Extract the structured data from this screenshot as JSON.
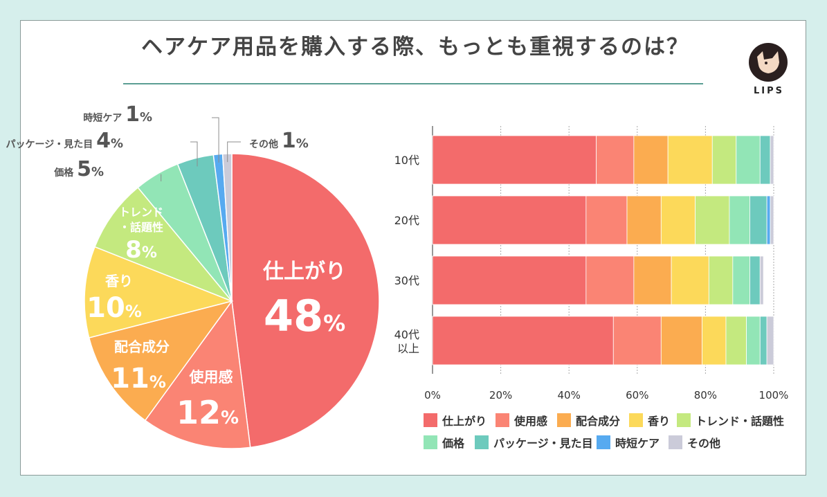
{
  "title": "ヘアケア用品を購入する際、もっとも重視するのは？",
  "brand": {
    "name": "LIPS"
  },
  "chart_data": [
    {
      "type": "pie",
      "title": "ヘアケア用品を購入する際、もっとも重視するのは？",
      "percent_sign": "%",
      "slices": [
        {
          "label": "仕上がり",
          "value_text": "48",
          "value": 48,
          "color": "#f36b6b"
        },
        {
          "label": "使用感",
          "value_text": "12",
          "value": 12,
          "color": "#fa8474"
        },
        {
          "label": "配合成分",
          "value_text": "11",
          "value": 11,
          "color": "#fbac50"
        },
        {
          "label": "香り",
          "value_text": "10",
          "value": 10,
          "color": "#fcd95a"
        },
        {
          "label": "トレンド・話題性",
          "value_text": "8",
          "value": 8,
          "color": "#c4e97f"
        },
        {
          "label": "価格",
          "value_text": "5",
          "value": 5,
          "color": "#92e5b6"
        },
        {
          "label": "パッケージ・見た目",
          "value_text": "4",
          "value": 4,
          "color": "#6dcabd"
        },
        {
          "label": "時短ケア",
          "value_text": "1",
          "value": 1,
          "color": "#57aaf0"
        },
        {
          "label": "その他",
          "value_text": "1",
          "value": 1,
          "color": "#cbcbd9"
        }
      ]
    },
    {
      "type": "bar",
      "orientation": "horizontal",
      "stacked": true,
      "categories": [
        "10代",
        "20代",
        "30代",
        "40代\n以上"
      ],
      "xlim": [
        0,
        100
      ],
      "xticks": [
        "0%",
        "20%",
        "40%",
        "60%",
        "80%",
        "100%"
      ],
      "gridlines": true,
      "legend_position": "bottom",
      "series": [
        {
          "name": "仕上がり",
          "color": "#f36b6b",
          "values": [
            48,
            45,
            45,
            53
          ]
        },
        {
          "name": "使用感",
          "color": "#fa8474",
          "values": [
            11,
            12,
            14,
            14
          ]
        },
        {
          "name": "配合成分",
          "color": "#fbac50",
          "values": [
            10,
            10,
            11,
            12
          ]
        },
        {
          "name": "香り",
          "color": "#fcd95a",
          "values": [
            13,
            10,
            11,
            7
          ]
        },
        {
          "name": "トレンド・話題性",
          "color": "#c4e97f",
          "values": [
            7,
            10,
            7,
            6
          ]
        },
        {
          "name": "価格",
          "color": "#92e5b6",
          "values": [
            7,
            6,
            5,
            4
          ]
        },
        {
          "name": "パッケージ・見た目",
          "color": "#6dcabd",
          "values": [
            3,
            5,
            3,
            2
          ]
        },
        {
          "name": "時短ケア",
          "color": "#57aaf0",
          "values": [
            0,
            1,
            0,
            0
          ]
        },
        {
          "name": "その他",
          "color": "#cbcbd9",
          "values": [
            1,
            1,
            1,
            2
          ]
        }
      ]
    }
  ]
}
